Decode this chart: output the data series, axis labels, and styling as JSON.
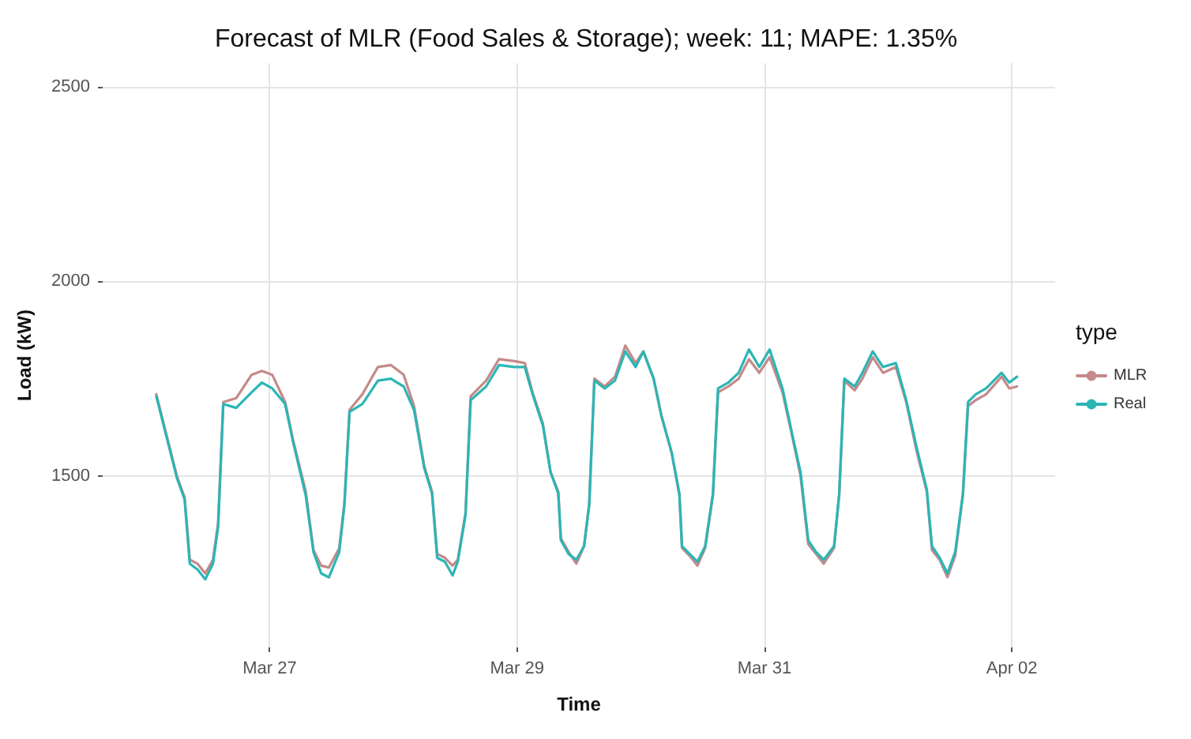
{
  "chart_data": {
    "type": "line",
    "title": "Forecast of MLR (Food Sales & Storage); week: 11; MAPE: 1.35%",
    "xlabel": "Time",
    "ylabel": "Load (kW)",
    "legend_title": "type",
    "x": [
      "--03-26T02:00",
      "--03-26T04:00",
      "--03-26T06:00",
      "--03-26T07:30",
      "--03-26T08:30",
      "--03-26T10:00",
      "--03-26T11:30",
      "--03-26T13:00",
      "--03-26T14:00",
      "--03-26T15:00",
      "--03-26T17:30",
      "--03-26T20:30",
      "--03-26T22:30",
      "--03-27T00:30",
      "--03-27T03:00",
      "--03-27T04:30",
      "--03-27T07:00",
      "--03-27T08:30",
      "--03-27T10:00",
      "--03-27T11:30",
      "--03-27T13:30",
      "--03-27T14:30",
      "--03-27T15:30",
      "--03-27T18:00",
      "--03-27T21:00",
      "--03-27T23:30",
      "--03-28T02:00",
      "--03-28T04:00",
      "--03-28T06:00",
      "--03-28T07:30",
      "--03-28T08:30",
      "--03-28T10:00",
      "--03-28T11:30",
      "--03-28T12:30",
      "--03-28T14:00",
      "--03-28T15:00",
      "--03-28T18:00",
      "--03-28T20:30",
      "--03-28T23:30",
      "--03-29T01:30",
      "--03-29T03:00",
      "--03-29T05:00",
      "--03-29T06:30",
      "--03-29T08:00",
      "--03-29T08:30",
      "--03-29T10:00",
      "--03-29T11:30",
      "--03-29T13:00",
      "--03-29T14:00",
      "--03-29T15:00",
      "--03-29T17:00",
      "--03-29T19:00",
      "--03-29T21:00",
      "--03-29T23:00",
      "--03-30T00:30",
      "--03-30T02:30",
      "--03-30T04:00",
      "--03-30T06:00",
      "--03-30T07:30",
      "--03-30T08:00",
      "--03-30T09:30",
      "--03-30T11:00",
      "--03-30T12:30",
      "--03-30T14:00",
      "--03-30T15:00",
      "--03-30T17:00",
      "--03-30T19:00",
      "--03-30T21:00",
      "--03-30T23:00",
      "--03-31T01:00",
      "--03-31T03:30",
      "--03-31T05:30",
      "--03-31T07:00",
      "--03-31T08:30",
      "--03-31T10:00",
      "--03-31T11:30",
      "--03-31T13:30",
      "--03-31T14:30",
      "--03-31T15:30",
      "--03-31T17:30",
      "--03-31T19:00",
      "--03-31T21:00",
      "--03-31T23:00",
      "--04-01T01:30",
      "--04-01T03:30",
      "--04-01T05:30",
      "--04-01T07:30",
      "--04-01T08:30",
      "--04-01T10:00",
      "--04-01T11:30",
      "--04-01T13:00",
      "--04-01T14:30",
      "--04-01T15:30",
      "--04-01T17:00",
      "--04-01T19:00",
      "--04-01T22:00",
      "--04-01T23:30",
      "--04-02T01:00"
    ],
    "series": [
      {
        "name": "MLR",
        "color": "#c48a8a",
        "values": [
          1710,
          1605,
          1500,
          1445,
          1285,
          1275,
          1250,
          1285,
          1380,
          1690,
          1700,
          1760,
          1770,
          1760,
          1690,
          1595,
          1460,
          1310,
          1270,
          1265,
          1315,
          1430,
          1670,
          1710,
          1780,
          1785,
          1760,
          1680,
          1525,
          1460,
          1300,
          1290,
          1270,
          1285,
          1405,
          1705,
          1745,
          1800,
          1795,
          1790,
          1715,
          1635,
          1510,
          1460,
          1340,
          1305,
          1275,
          1320,
          1430,
          1750,
          1730,
          1755,
          1835,
          1790,
          1820,
          1750,
          1655,
          1560,
          1450,
          1315,
          1295,
          1270,
          1315,
          1450,
          1715,
          1730,
          1750,
          1800,
          1765,
          1805,
          1715,
          1595,
          1500,
          1325,
          1300,
          1275,
          1315,
          1450,
          1745,
          1720,
          1750,
          1805,
          1765,
          1780,
          1690,
          1565,
          1460,
          1310,
          1285,
          1240,
          1295,
          1450,
          1680,
          1695,
          1710,
          1755,
          1725,
          1730
        ]
      },
      {
        "name": "Real",
        "color": "#2cb5b5",
        "values": [
          1705,
          1600,
          1495,
          1440,
          1275,
          1260,
          1235,
          1275,
          1370,
          1685,
          1675,
          1715,
          1740,
          1725,
          1685,
          1590,
          1450,
          1305,
          1250,
          1240,
          1305,
          1425,
          1665,
          1685,
          1745,
          1750,
          1730,
          1670,
          1520,
          1455,
          1290,
          1280,
          1245,
          1280,
          1400,
          1695,
          1730,
          1785,
          1780,
          1780,
          1710,
          1630,
          1510,
          1455,
          1335,
          1300,
          1285,
          1320,
          1425,
          1745,
          1725,
          1745,
          1820,
          1780,
          1820,
          1750,
          1655,
          1560,
          1455,
          1320,
          1300,
          1280,
          1320,
          1455,
          1725,
          1740,
          1765,
          1825,
          1780,
          1825,
          1725,
          1600,
          1510,
          1335,
          1305,
          1285,
          1320,
          1455,
          1750,
          1730,
          1765,
          1820,
          1780,
          1790,
          1695,
          1575,
          1465,
          1320,
          1290,
          1250,
          1305,
          1455,
          1690,
          1710,
          1725,
          1765,
          1740,
          1755
        ]
      }
    ],
    "xlim": [
      "--03-25T15:36",
      "--04-02T08:24"
    ],
    "xticks": [
      {
        "value": "--03-27",
        "label": "Mar 27"
      },
      {
        "value": "--03-29",
        "label": "Mar 29"
      },
      {
        "value": "--03-31",
        "label": "Mar 31"
      },
      {
        "value": "--04-02",
        "label": "Apr 02"
      }
    ],
    "ylim": [
      1060,
      2560
    ],
    "yticks": [
      1500,
      2000,
      2500
    ],
    "grid": true,
    "legend": "right",
    "marker": "none",
    "line_style": "solid"
  }
}
